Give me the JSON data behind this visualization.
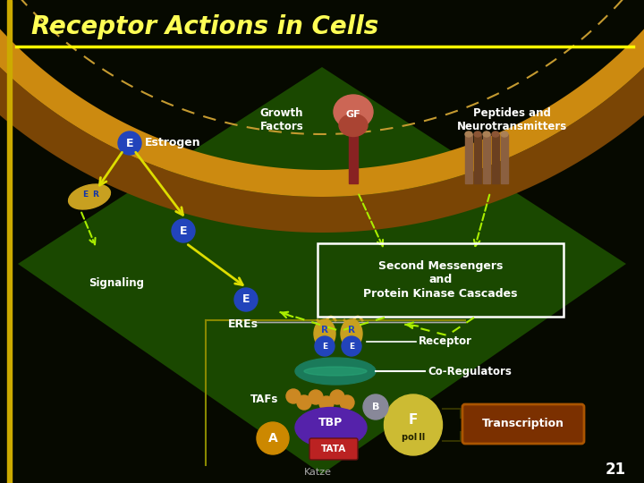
{
  "title": "Receptor Actions in Cells",
  "title_color": "#FFFF55",
  "title_fontsize": 20,
  "bg_dark": "#050800",
  "bg_green": "#0d3000",
  "diamond_color": "#1a4a00",
  "yellow_line_color": "#FFFF00",
  "yellow_arrow_color": "#DDDD00",
  "dashed_arrow_color": "#AAEE00",
  "blue_circle_color": "#2244BB",
  "mem_outer_color": "#7A4505",
  "mem_inner_color": "#C4830A",
  "teal_color": "#1A7A5A",
  "tbp_color": "#5522AA",
  "tata_color": "#BB2222",
  "pol_color": "#CCBB33",
  "a_color": "#CC8800",
  "b_color": "#888899",
  "gf_stalk_color": "#6B2A2A",
  "gf_cap_color": "#AA5544",
  "pep_color1": "#8B6040",
  "pep_color2": "#6B4020",
  "trans_box_color": "#7B3000",
  "yellow_side_bar": "#DDAA00",
  "re_gold_color": "#C8A020",
  "label_estrogen": "Estrogen",
  "label_gf": "Growth\nFactors",
  "label_peptides": "Peptides and\nNeurotransmitters",
  "label_signaling": "Signaling",
  "label_second": "Second Messengers\nand\nProtein Kinase Cascades",
  "label_eres": "EREs",
  "label_receptor": "Receptor",
  "label_coregulators": "Co-Regulators",
  "label_tafs": "TAFs",
  "label_tbp": "TBP",
  "label_tata": "TATA",
  "label_pol": "pol II",
  "label_transcription": "Transcription",
  "label_gf_circle": "GF",
  "label_b": "B",
  "label_f": "F",
  "label_a": "A",
  "footnote": "Katze",
  "page_num": "21"
}
